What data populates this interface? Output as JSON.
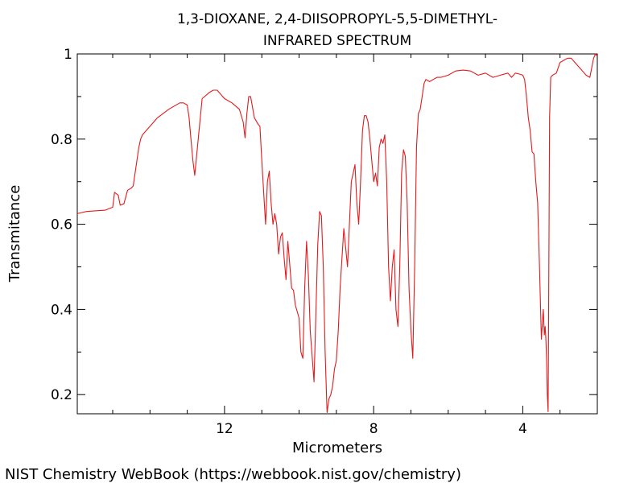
{
  "chart_data": {
    "type": "line",
    "title": "1,3-DIOXANE, 2,4-DIISOPROPYL-5,5-DIMETHYL-",
    "subtitle": "INFRARED SPECTRUM",
    "xlabel": "Micrometers",
    "ylabel": "Transmitance",
    "xlim": [
      15.95,
      2.0
    ],
    "ylim": [
      0.155,
      1.0
    ],
    "x_ticks": [
      12,
      8,
      4
    ],
    "x_tick_labels": [
      "12",
      "8",
      "4"
    ],
    "y_ticks": [
      0.2,
      0.4,
      0.6,
      0.8,
      1.0
    ],
    "y_tick_labels": [
      "0.2",
      "0.4",
      "0.6",
      "0.8",
      "1"
    ],
    "line_color": "#e41a1c",
    "grid": false,
    "series": [
      {
        "x": [
          15.95,
          15.7,
          15.4,
          15.2,
          15.0,
          14.95,
          14.85,
          14.8,
          14.7,
          14.6,
          14.5,
          14.45,
          14.4,
          14.3,
          14.25,
          14.2,
          14.0,
          13.8,
          13.5,
          13.2,
          13.1,
          13.0,
          12.95,
          12.9,
          12.85,
          12.8,
          12.6,
          12.4,
          12.3,
          12.2,
          12.0,
          11.8,
          11.6,
          11.5,
          11.45,
          11.4,
          11.35,
          11.3,
          11.2,
          11.1,
          11.05,
          11.0,
          10.9,
          10.85,
          10.8,
          10.75,
          10.7,
          10.65,
          10.6,
          10.55,
          10.5,
          10.45,
          10.4,
          10.35,
          10.3,
          10.2,
          10.15,
          10.1,
          10.0,
          9.95,
          9.9,
          9.85,
          9.8,
          9.75,
          9.7,
          9.6,
          9.5,
          9.45,
          9.4,
          9.35,
          9.3,
          9.25,
          9.2,
          9.15,
          9.1,
          9.05,
          9.0,
          8.95,
          8.9,
          8.85,
          8.8,
          8.7,
          8.6,
          8.5,
          8.45,
          8.4,
          8.35,
          8.3,
          8.25,
          8.2,
          8.15,
          8.1,
          8.05,
          8.0,
          7.95,
          7.9,
          7.85,
          7.8,
          7.75,
          7.7,
          7.65,
          7.6,
          7.55,
          7.5,
          7.45,
          7.4,
          7.35,
          7.3,
          7.25,
          7.2,
          7.15,
          7.1,
          7.05,
          7.0,
          6.95,
          6.9,
          6.85,
          6.8,
          6.75,
          6.7,
          6.65,
          6.6,
          6.5,
          6.4,
          6.3,
          6.2,
          6.0,
          5.8,
          5.6,
          5.4,
          5.2,
          5.0,
          4.8,
          4.6,
          4.4,
          4.3,
          4.2,
          4.1,
          4.0,
          3.95,
          3.9,
          3.85,
          3.8,
          3.75,
          3.7,
          3.65,
          3.6,
          3.55,
          3.5,
          3.45,
          3.42,
          3.4,
          3.38,
          3.36,
          3.34,
          3.32,
          3.3,
          3.28,
          3.25,
          3.2,
          3.1,
          3.0,
          2.9,
          2.8,
          2.7,
          2.6,
          2.5,
          2.45,
          2.4,
          2.3,
          2.2,
          2.1,
          2.05,
          2.0
        ],
        "y": [
          0.625,
          0.63,
          0.632,
          0.633,
          0.64,
          0.675,
          0.668,
          0.645,
          0.648,
          0.68,
          0.685,
          0.69,
          0.72,
          0.78,
          0.8,
          0.81,
          0.83,
          0.85,
          0.87,
          0.885,
          0.885,
          0.88,
          0.85,
          0.8,
          0.75,
          0.715,
          0.895,
          0.91,
          0.915,
          0.915,
          0.895,
          0.885,
          0.87,
          0.84,
          0.803,
          0.86,
          0.9,
          0.9,
          0.85,
          0.835,
          0.83,
          0.75,
          0.6,
          0.7,
          0.725,
          0.65,
          0.6,
          0.625,
          0.6,
          0.53,
          0.57,
          0.58,
          0.52,
          0.47,
          0.56,
          0.45,
          0.445,
          0.41,
          0.38,
          0.3,
          0.285,
          0.45,
          0.56,
          0.48,
          0.35,
          0.23,
          0.55,
          0.63,
          0.62,
          0.5,
          0.3,
          0.158,
          0.19,
          0.2,
          0.22,
          0.26,
          0.28,
          0.35,
          0.45,
          0.52,
          0.59,
          0.5,
          0.7,
          0.74,
          0.65,
          0.6,
          0.7,
          0.82,
          0.855,
          0.855,
          0.84,
          0.8,
          0.75,
          0.7,
          0.72,
          0.69,
          0.78,
          0.8,
          0.79,
          0.81,
          0.7,
          0.5,
          0.42,
          0.5,
          0.54,
          0.4,
          0.36,
          0.5,
          0.72,
          0.775,
          0.76,
          0.65,
          0.45,
          0.35,
          0.285,
          0.5,
          0.78,
          0.86,
          0.87,
          0.9,
          0.93,
          0.94,
          0.935,
          0.94,
          0.945,
          0.945,
          0.95,
          0.96,
          0.962,
          0.96,
          0.95,
          0.955,
          0.945,
          0.95,
          0.955,
          0.945,
          0.955,
          0.953,
          0.95,
          0.94,
          0.9,
          0.85,
          0.82,
          0.77,
          0.765,
          0.7,
          0.65,
          0.5,
          0.33,
          0.4,
          0.34,
          0.36,
          0.33,
          0.28,
          0.2,
          0.16,
          0.5,
          0.85,
          0.945,
          0.95,
          0.955,
          0.98,
          0.985,
          0.99,
          0.99,
          0.98,
          0.97,
          0.965,
          0.96,
          0.95,
          0.945,
          0.99,
          1.0,
          0.995
        ]
      }
    ]
  },
  "footer": {
    "credit": "NIST Chemistry WebBook (https://webbook.nist.gov/chemistry)"
  }
}
